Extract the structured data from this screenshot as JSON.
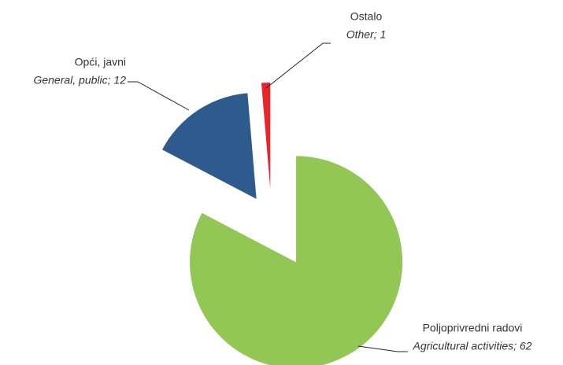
{
  "chart_data": {
    "type": "pie",
    "categories": [
      "Poljoprivredni radovi",
      "Opći, javni",
      "Ostalo"
    ],
    "values": [
      62,
      12,
      1
    ],
    "value_labels": [
      "Agricultural activities; 62",
      "General, public; 12",
      "Other; 1"
    ],
    "colors": [
      "#92c755",
      "#2e5a8e",
      "#e8262a"
    ]
  }
}
